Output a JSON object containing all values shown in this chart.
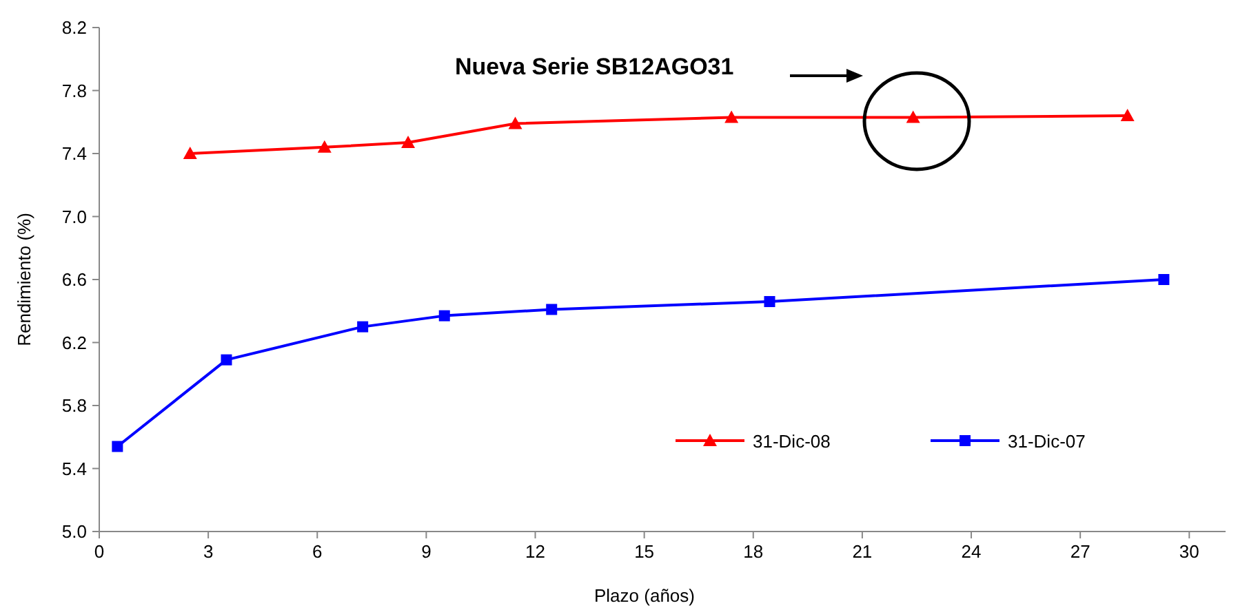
{
  "chart_data": {
    "type": "line",
    "xlabel": "Plazo (años)",
    "ylabel": "Rendimiento (%)",
    "xlim": [
      0,
      31
    ],
    "xticks": [
      0,
      3,
      6,
      9,
      12,
      15,
      18,
      21,
      24,
      27,
      30
    ],
    "ylim": [
      5.0,
      8.2
    ],
    "yticks": [
      {
        "value": 5.0,
        "label": "5.0"
      },
      {
        "value": 5.4,
        "label": "5.4"
      },
      {
        "value": 5.8,
        "label": "5.8"
      },
      {
        "value": 6.2,
        "label": "6.2"
      },
      {
        "value": 6.6,
        "label": "6.6"
      },
      {
        "value": 7.0,
        "label": "7.0"
      },
      {
        "value": 7.4,
        "label": "7.4"
      },
      {
        "value": 7.8,
        "label": "7.8"
      },
      {
        "value": 8.2,
        "label": "8.2"
      }
    ],
    "grid": false,
    "legend": "bottom right",
    "series": [
      {
        "name": "31-Dic-08",
        "color": "#ff0000",
        "marker": "triangle",
        "x": [
          2.5,
          6.2,
          8.5,
          11.45,
          17.4,
          22.4,
          28.3
        ],
        "values": [
          7.4,
          7.44,
          7.47,
          7.59,
          7.63,
          7.63,
          7.64
        ]
      },
      {
        "name": "31-Dic-07",
        "color": "#0000ff",
        "marker": "square",
        "x": [
          0.5,
          3.5,
          7.25,
          9.5,
          12.45,
          18.45,
          29.3
        ],
        "values": [
          5.54,
          6.09,
          6.3,
          6.37,
          6.41,
          6.46,
          6.6
        ]
      }
    ],
    "annotations": [
      "Nueva Serie SB12AGO31"
    ]
  }
}
